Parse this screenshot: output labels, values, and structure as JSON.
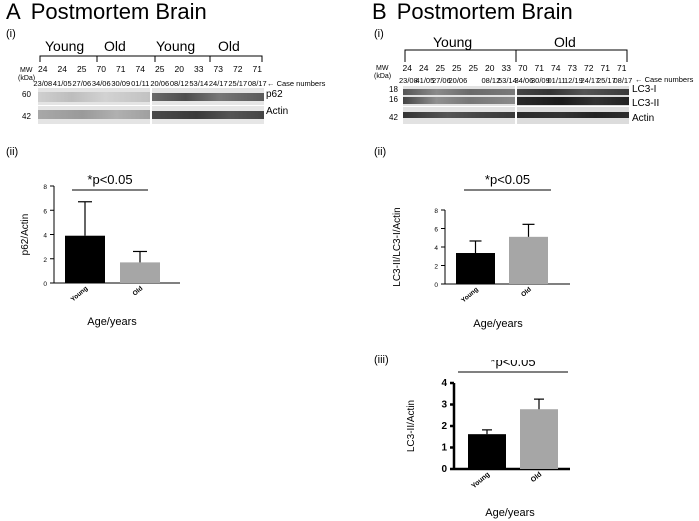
{
  "panel_a": {
    "letter": "A",
    "title": "Postmortem Brain",
    "sub_i": "(i)",
    "sub_ii": "(ii)",
    "mw_label": "MW",
    "kda_label": "(kDa)",
    "mw_marks": [
      "60",
      "42"
    ],
    "groups": [
      "Young",
      "Old",
      "Young",
      "Old"
    ],
    "ages": [
      "24",
      "24",
      "25",
      "70",
      "71",
      "74",
      "25",
      "20",
      "33",
      "73",
      "72",
      "71"
    ],
    "cases": [
      "23/08",
      "41/05",
      "27/06",
      "34/06",
      "30/09",
      "01/11",
      "20/06",
      "08/12",
      "53/14",
      "24/17",
      "25/17",
      "08/17"
    ],
    "case_numbers_label": "← Case numbers",
    "band_labels": [
      "p62",
      "Actin"
    ]
  },
  "panel_b": {
    "letter": "B",
    "title": "Postmortem Brain",
    "sub_i": "(i)",
    "sub_ii": "(ii)",
    "sub_iii": "(iii)",
    "mw_label": "MW",
    "kda_label": "(kDa)",
    "mw_marks": [
      "18",
      "16",
      "42"
    ],
    "groups": [
      "Young",
      "Old"
    ],
    "ages": [
      "24",
      "24",
      "25",
      "25",
      "25",
      "20",
      "33",
      "70",
      "71",
      "74",
      "73",
      "72",
      "71",
      "71"
    ],
    "cases": [
      "23/08",
      "41/05",
      "27/06",
      "20/06",
      "",
      "08/12",
      "53/14",
      "34/06",
      "30/09",
      "01/11",
      "12/19",
      "24/17",
      "25/17",
      "08/17"
    ],
    "case_numbers_label": "← Case numbers",
    "band_labels": [
      "LC3-I",
      "LC3-II",
      "Actin"
    ]
  },
  "chart_data": [
    {
      "type": "bar",
      "title": "",
      "categories": [
        "Young",
        "Old"
      ],
      "values": [
        3.9,
        1.7
      ],
      "error_upper": [
        6.7,
        2.6
      ],
      "colors": [
        "#000000",
        "#a6a6a6"
      ],
      "xlabel": "Age/years",
      "ylabel": "p62/Actin",
      "ylim": [
        0,
        8
      ],
      "yticks": [
        "0",
        "2",
        "4",
        "6",
        "8"
      ],
      "annotation": "*p<0.05"
    },
    {
      "type": "bar",
      "title": "",
      "categories": [
        "Young",
        "Old"
      ],
      "values": [
        3.35,
        5.1
      ],
      "error_upper": [
        4.65,
        6.45
      ],
      "colors": [
        "#000000",
        "#a6a6a6"
      ],
      "xlabel": "Age/years",
      "ylabel": "LC3-II/LC3-I/Actin",
      "ylim": [
        0,
        8
      ],
      "yticks": [
        "0",
        "2",
        "4",
        "6",
        "8"
      ],
      "annotation": "*p<0.05"
    },
    {
      "type": "bar",
      "title": "",
      "categories": [
        "Young",
        "Old"
      ],
      "values": [
        1.62,
        2.78
      ],
      "error_upper": [
        1.82,
        3.25
      ],
      "colors": [
        "#000000",
        "#a6a6a6"
      ],
      "xlabel": "Age/years",
      "ylabel": "LC3-II/Actin",
      "ylim": [
        0,
        4
      ],
      "yticks": [
        "0",
        "1",
        "2",
        "3",
        "4"
      ],
      "annotation": "*p<0.05"
    }
  ]
}
